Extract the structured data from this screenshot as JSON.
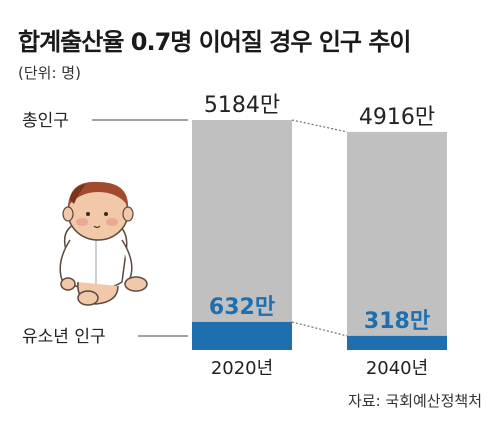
{
  "chart_data": {
    "type": "bar",
    "stacked": true,
    "title": "합계출산율 0.7명 이어질 경우 인구 추이",
    "unit_label": "(단위: 명)",
    "source": "자료: 국회예산정책처",
    "categories": [
      "2020년",
      "2040년"
    ],
    "series": [
      {
        "name": "총인구",
        "values": [
          5184,
          4916
        ],
        "labels": [
          "5184만",
          "4916만"
        ],
        "color": "#c0c0c0"
      },
      {
        "name": "유소년 인구",
        "values": [
          632,
          318
        ],
        "labels": [
          "632만",
          "318만"
        ],
        "color": "#1f6fae"
      }
    ],
    "label_colors": {
      "total": "#222222",
      "youth": "#1f6fae"
    },
    "grid": false
  }
}
